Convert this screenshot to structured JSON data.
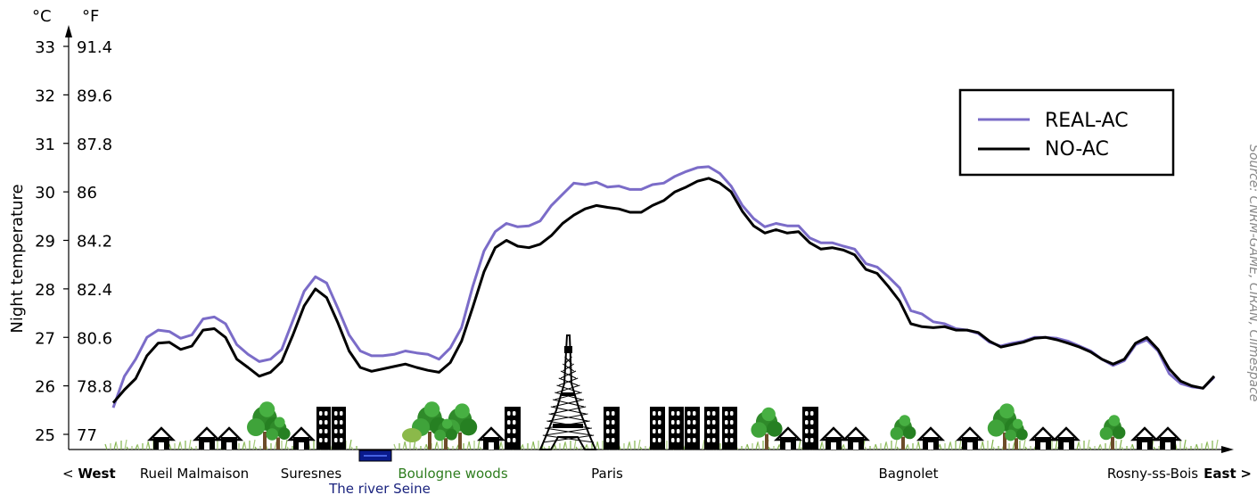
{
  "chart_data": {
    "type": "line",
    "title": "",
    "ylabel": "Night temperature",
    "units": {
      "left": "°C",
      "right": "°F"
    },
    "ylim": [
      24.7,
      33.3
    ],
    "y_ticks": [
      {
        "c": "33",
        "f": "91.4"
      },
      {
        "c": "32",
        "f": "89.6"
      },
      {
        "c": "31",
        "f": "87.8"
      },
      {
        "c": "30",
        "f": "86"
      },
      {
        "c": "29",
        "f": "84.2"
      },
      {
        "c": "28",
        "f": "82.4"
      },
      {
        "c": "27",
        "f": "80.6"
      },
      {
        "c": "26",
        "f": "78.8"
      },
      {
        "c": "25",
        "f": "77"
      }
    ],
    "x_labels": {
      "west": "West",
      "west_prefix": "<",
      "east": "East",
      "east_suffix": ">",
      "places": [
        {
          "name": "Rueil Malmaison",
          "kind": "town"
        },
        {
          "name": "Suresnes",
          "kind": "town"
        },
        {
          "name": "Boulogne woods",
          "kind": "woods"
        },
        {
          "name": "Paris",
          "kind": "town"
        },
        {
          "name": "Bagnolet",
          "kind": "town"
        },
        {
          "name": "Rosny-ss-Bois",
          "kind": "town"
        }
      ],
      "river": "The river Seine"
    },
    "legend": {
      "placement": "top-right",
      "entries": [
        "REAL-AC",
        "NO-AC"
      ]
    },
    "source": "Source: CNRM-GAME, CIRAN, Climespace",
    "grid": false,
    "series": [
      {
        "name": "REAL-AC",
        "color": "#7b6cc8",
        "values": [
          25.55,
          26.2,
          26.55,
          27.0,
          27.15,
          27.12,
          26.98,
          27.05,
          27.38,
          27.42,
          27.28,
          26.85,
          26.65,
          26.5,
          26.55,
          26.75,
          27.35,
          27.95,
          28.25,
          28.12,
          27.6,
          27.05,
          26.72,
          26.62,
          26.62,
          26.65,
          26.72,
          26.68,
          26.65,
          26.55,
          26.78,
          27.2,
          28.05,
          28.78,
          29.18,
          29.35,
          29.28,
          29.3,
          29.4,
          29.72,
          29.95,
          30.18,
          30.15,
          30.2,
          30.1,
          30.12,
          30.05,
          30.05,
          30.15,
          30.18,
          30.32,
          30.42,
          30.5,
          30.52,
          30.38,
          30.12,
          29.72,
          29.45,
          29.28,
          29.35,
          29.3,
          29.3,
          29.05,
          28.95,
          28.95,
          28.88,
          28.82,
          28.52,
          28.45,
          28.25,
          28.02,
          27.55,
          27.48,
          27.32,
          27.28,
          27.18,
          27.15,
          27.08,
          26.9,
          26.82,
          26.88,
          26.92,
          27.0,
          27.0,
          26.98,
          26.92,
          26.82,
          26.72,
          26.55,
          26.42,
          26.52,
          26.85,
          26.95,
          26.72,
          26.25,
          26.05,
          25.98,
          25.95,
          26.18
        ]
      },
      {
        "name": "NO-AC",
        "color": "#000000",
        "values": [
          25.65,
          25.92,
          26.15,
          26.62,
          26.88,
          26.9,
          26.75,
          26.82,
          27.15,
          27.18,
          27.0,
          26.55,
          26.38,
          26.2,
          26.28,
          26.5,
          27.05,
          27.65,
          28.0,
          27.82,
          27.3,
          26.72,
          26.38,
          26.3,
          26.35,
          26.4,
          26.45,
          26.38,
          26.32,
          26.28,
          26.48,
          26.92,
          27.62,
          28.35,
          28.85,
          29.0,
          28.88,
          28.85,
          28.92,
          29.1,
          29.35,
          29.52,
          29.65,
          29.72,
          29.68,
          29.65,
          29.58,
          29.58,
          29.72,
          29.82,
          30.0,
          30.1,
          30.22,
          30.28,
          30.18,
          30.0,
          29.6,
          29.3,
          29.15,
          29.22,
          29.15,
          29.18,
          28.95,
          28.82,
          28.85,
          28.8,
          28.7,
          28.4,
          28.32,
          28.05,
          27.75,
          27.28,
          27.22,
          27.2,
          27.22,
          27.15,
          27.15,
          27.1,
          26.92,
          26.8,
          26.85,
          26.9,
          26.98,
          27.0,
          26.95,
          26.88,
          26.8,
          26.7,
          26.55,
          26.45,
          26.55,
          26.88,
          27.0,
          26.75,
          26.35,
          26.1,
          26.0,
          25.95,
          26.2
        ]
      }
    ]
  }
}
